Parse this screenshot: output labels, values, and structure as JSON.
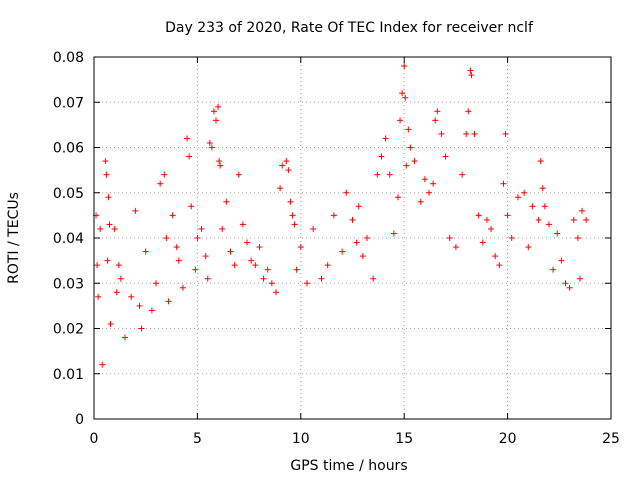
{
  "chart_data": {
    "type": "scatter",
    "title": "Day 233 of 2020, Rate Of TEC Index for receiver nclf",
    "xlabel": "GPS time / hours",
    "ylabel": "ROTI / TECUs",
    "xlim": [
      0,
      25
    ],
    "ylim": [
      0,
      0.08
    ],
    "xticks": [
      0,
      5,
      10,
      15,
      20,
      25
    ],
    "xtick_labels": [
      "0",
      "5",
      "10",
      "15",
      "20",
      "25"
    ],
    "yticks": [
      0,
      0.01,
      0.02,
      0.03,
      0.04,
      0.05,
      0.06,
      0.07,
      0.08
    ],
    "ytick_labels": [
      "0",
      "0.01",
      "0.02",
      "0.03",
      "0.04",
      "0.05",
      "0.06",
      "0.07",
      "0.08"
    ],
    "grid": true,
    "marker": "+",
    "color": "#ff0000",
    "series": [
      {
        "name": "ROTI",
        "x": [
          0.1,
          0.15,
          0.2,
          0.3,
          0.4,
          0.55,
          0.6,
          0.65,
          0.7,
          0.75,
          0.8,
          1.0,
          1.1,
          1.2,
          1.3,
          1.5,
          1.8,
          2.0,
          2.2,
          2.3,
          2.5,
          2.8,
          3.0,
          3.2,
          3.4,
          3.5,
          3.6,
          3.8,
          4.0,
          4.1,
          4.3,
          4.5,
          4.6,
          4.7,
          4.9,
          5.0,
          5.2,
          5.4,
          5.5,
          5.6,
          5.7,
          5.8,
          5.9,
          6.0,
          6.05,
          6.1,
          6.2,
          6.4,
          6.6,
          6.8,
          7.0,
          7.2,
          7.4,
          7.6,
          7.8,
          8.0,
          8.2,
          8.4,
          8.6,
          8.8,
          9.0,
          9.1,
          9.3,
          9.4,
          9.5,
          9.6,
          9.7,
          9.8,
          10.0,
          10.3,
          10.6,
          11.0,
          11.3,
          11.6,
          12.0,
          12.2,
          12.5,
          12.7,
          12.8,
          13.0,
          13.2,
          13.5,
          13.7,
          13.9,
          14.1,
          14.3,
          14.5,
          14.7,
          14.8,
          14.9,
          15.0,
          15.05,
          15.1,
          15.2,
          15.3,
          15.5,
          15.8,
          16.0,
          16.2,
          16.4,
          16.5,
          16.6,
          16.8,
          17.0,
          17.2,
          17.5,
          17.8,
          18.0,
          18.1,
          18.2,
          18.25,
          18.4,
          18.6,
          18.8,
          19.0,
          19.2,
          19.4,
          19.6,
          19.8,
          19.9,
          20.0,
          20.2,
          20.5,
          20.8,
          21.0,
          21.2,
          21.5,
          21.6,
          21.7,
          21.8,
          22.0,
          22.2,
          22.4,
          22.6,
          22.8,
          23.0,
          23.2,
          23.4,
          23.5,
          23.6,
          23.8
        ],
        "y": [
          0.045,
          0.034,
          0.027,
          0.042,
          0.012,
          0.057,
          0.054,
          0.035,
          0.049,
          0.043,
          0.021,
          0.042,
          0.028,
          0.034,
          0.031,
          0.018,
          0.027,
          0.046,
          0.025,
          0.02,
          0.037,
          0.024,
          0.03,
          0.052,
          0.054,
          0.04,
          0.026,
          0.045,
          0.038,
          0.035,
          0.029,
          0.062,
          0.058,
          0.047,
          0.033,
          0.04,
          0.042,
          0.036,
          0.031,
          0.061,
          0.06,
          0.068,
          0.066,
          0.069,
          0.057,
          0.056,
          0.042,
          0.048,
          0.037,
          0.034,
          0.054,
          0.043,
          0.039,
          0.035,
          0.034,
          0.038,
          0.031,
          0.033,
          0.03,
          0.028,
          0.051,
          0.056,
          0.057,
          0.055,
          0.048,
          0.045,
          0.043,
          0.033,
          0.038,
          0.03,
          0.042,
          0.031,
          0.034,
          0.045,
          0.037,
          0.05,
          0.044,
          0.039,
          0.047,
          0.036,
          0.04,
          0.031,
          0.054,
          0.058,
          0.062,
          0.054,
          0.041,
          0.049,
          0.066,
          0.072,
          0.078,
          0.071,
          0.056,
          0.064,
          0.06,
          0.057,
          0.048,
          0.053,
          0.05,
          0.052,
          0.066,
          0.068,
          0.063,
          0.058,
          0.04,
          0.038,
          0.054,
          0.063,
          0.068,
          0.077,
          0.076,
          0.063,
          0.045,
          0.039,
          0.044,
          0.042,
          0.036,
          0.034,
          0.052,
          0.063,
          0.045,
          0.04,
          0.049,
          0.05,
          0.038,
          0.047,
          0.044,
          0.057,
          0.051,
          0.047,
          0.043,
          0.033,
          0.041,
          0.035,
          0.03,
          0.029,
          0.044,
          0.04,
          0.031,
          0.046,
          0.044
        ]
      }
    ]
  }
}
